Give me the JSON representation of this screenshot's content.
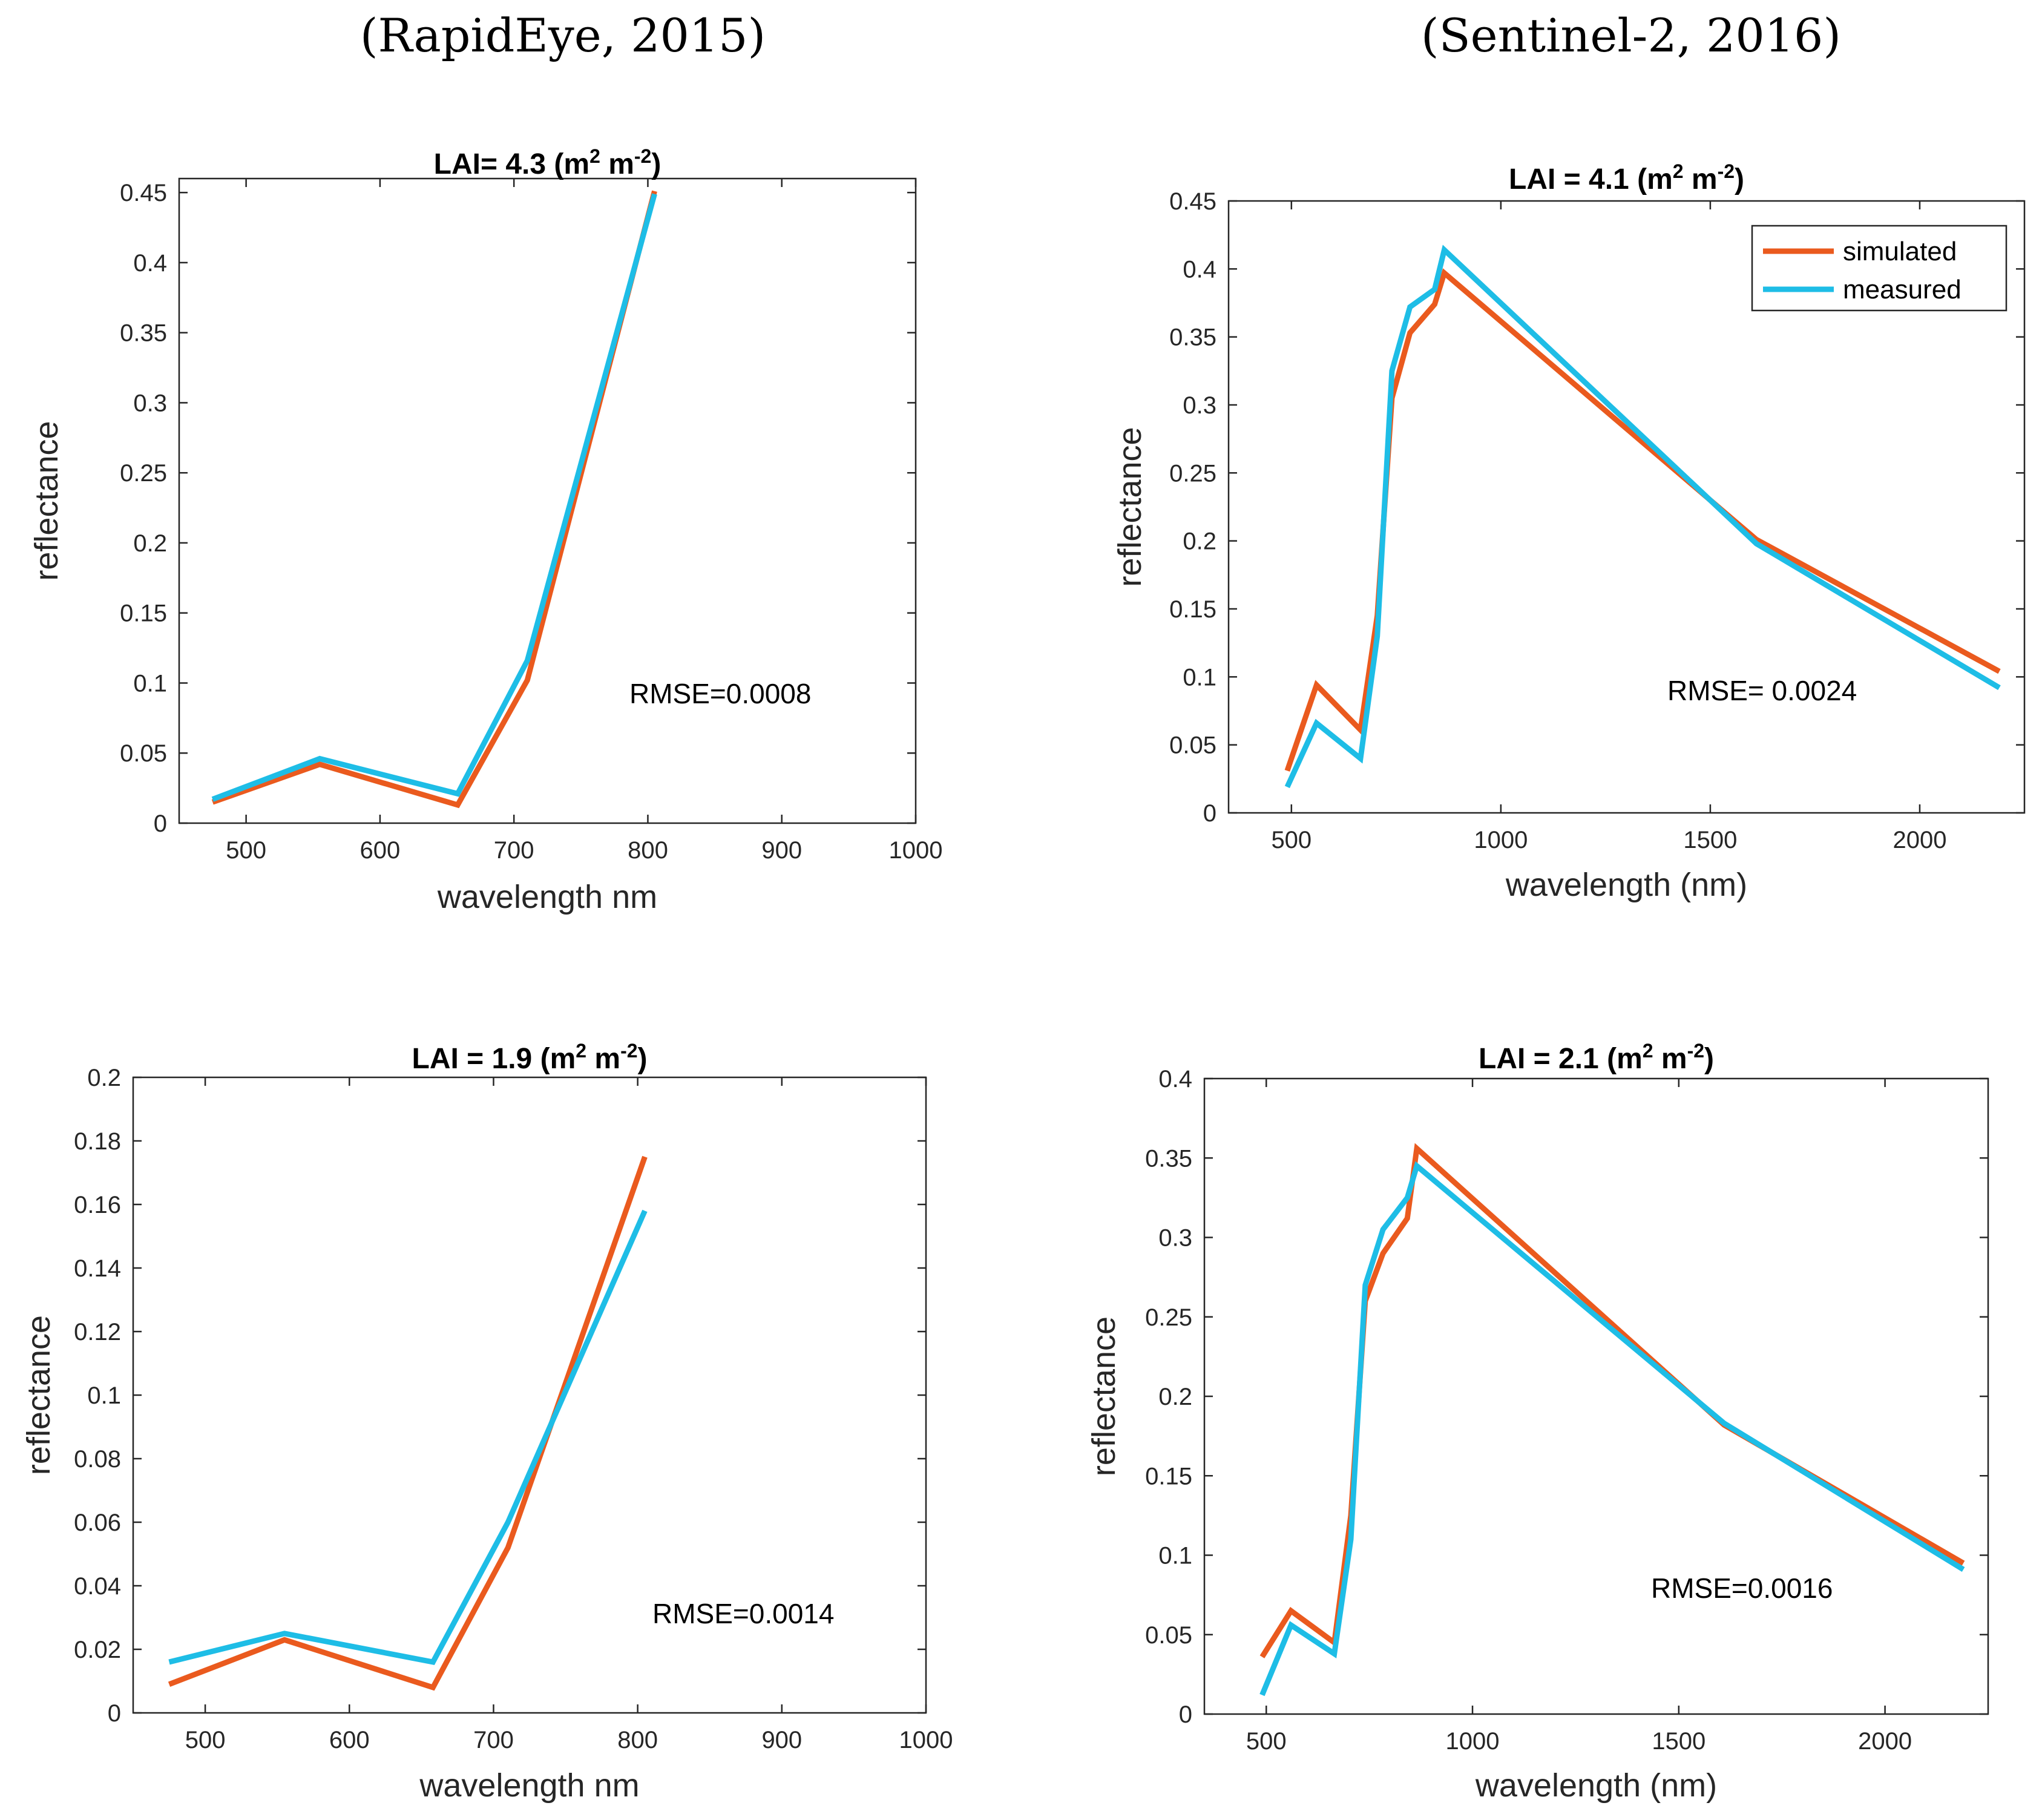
{
  "captions": {
    "left": "(RapidEye, 2015)",
    "right": "(Sentinel-2, 2016)"
  },
  "colors": {
    "simulated": "#EA5A1E",
    "measured": "#1EBDE6"
  },
  "chart_data": [
    {
      "type": "line",
      "title": "LAI= 4.3 (m² m⁻²)",
      "title_parts": [
        "LAI= 4.3 (m",
        "2",
        " m",
        "-2",
        ")"
      ],
      "xlabel": "wavelength  nm",
      "ylabel": "reflectance",
      "xlim": [
        450,
        1000
      ],
      "ylim": [
        0,
        0.46
      ],
      "xticks": [
        500,
        600,
        700,
        800,
        900,
        1000
      ],
      "xtick_labels": [
        "500",
        "600",
        "700",
        "800",
        "900",
        "1000"
      ],
      "yticks": [
        0,
        0.05,
        0.1,
        0.15,
        0.2,
        0.25,
        0.3,
        0.35,
        0.4,
        0.45
      ],
      "ytick_labels": [
        "0",
        "0.05",
        "0.1",
        "0.15",
        "0.2",
        "0.25",
        "0.3",
        "0.35",
        "0.4",
        "0.45"
      ],
      "annotation": "RMSE=0.0008",
      "series": [
        {
          "name": "simulated",
          "x": [
            475,
            555,
            658,
            710,
            805
          ],
          "y": [
            0.015,
            0.042,
            0.013,
            0.102,
            0.451
          ]
        },
        {
          "name": "measured",
          "x": [
            475,
            555,
            658,
            710,
            805
          ],
          "y": [
            0.017,
            0.046,
            0.021,
            0.116,
            0.449
          ]
        }
      ]
    },
    {
      "type": "line",
      "title": "LAI = 4.1 (m² m⁻²)",
      "title_parts": [
        "LAI = 4.1 (m",
        "2",
        " m",
        "-2",
        ")"
      ],
      "xlabel": "wavelength (nm)",
      "ylabel": "reflectance",
      "xlim": [
        350,
        2250
      ],
      "ylim": [
        0,
        0.45
      ],
      "xticks": [
        500,
        1000,
        1500,
        2000
      ],
      "xtick_labels": [
        "500",
        "1000",
        "1500",
        "2000"
      ],
      "yticks": [
        0,
        0.05,
        0.1,
        0.15,
        0.2,
        0.25,
        0.3,
        0.35,
        0.4,
        0.45
      ],
      "ytick_labels": [
        "0",
        "0.05",
        "0.1",
        "0.15",
        "0.2",
        "0.25",
        "0.3",
        "0.35",
        "0.4",
        "0.45"
      ],
      "annotation": "RMSE= 0.0024",
      "legend": [
        "simulated",
        "measured"
      ],
      "series": [
        {
          "name": "simulated",
          "x": [
            490,
            560,
            665,
            705,
            740,
            783,
            842,
            865,
            1610,
            2190
          ],
          "y": [
            0.031,
            0.094,
            0.061,
            0.145,
            0.305,
            0.353,
            0.374,
            0.397,
            0.201,
            0.104
          ]
        },
        {
          "name": "measured",
          "x": [
            490,
            560,
            665,
            705,
            740,
            783,
            842,
            865,
            1610,
            2190
          ],
          "y": [
            0.019,
            0.066,
            0.04,
            0.13,
            0.325,
            0.372,
            0.385,
            0.414,
            0.198,
            0.092
          ]
        }
      ]
    },
    {
      "type": "line",
      "title": "LAI = 1.9 (m² m⁻²)",
      "title_parts": [
        "LAI = 1.9 (m",
        "2",
        " m",
        "-2",
        ")"
      ],
      "xlabel": "wavelength  nm",
      "ylabel": "reflectance",
      "xlim": [
        450,
        1000
      ],
      "ylim": [
        0,
        0.2
      ],
      "xticks": [
        500,
        600,
        700,
        800,
        900,
        1000
      ],
      "xtick_labels": [
        "500",
        "600",
        "700",
        "800",
        "900",
        "1000"
      ],
      "yticks": [
        0,
        0.02,
        0.04,
        0.06,
        0.08,
        0.1,
        0.12,
        0.14,
        0.16,
        0.18,
        0.2
      ],
      "ytick_labels": [
        "0",
        "0.02",
        "0.04",
        "0.06",
        "0.08",
        "0.1",
        "0.12",
        "0.14",
        "0.16",
        "0.18",
        "0.2"
      ],
      "annotation": "RMSE=0.0014",
      "series": [
        {
          "name": "simulated",
          "x": [
            475,
            555,
            658,
            710,
            805
          ],
          "y": [
            0.009,
            0.023,
            0.008,
            0.052,
            0.175
          ]
        },
        {
          "name": "measured",
          "x": [
            475,
            555,
            658,
            710,
            805
          ],
          "y": [
            0.016,
            0.025,
            0.016,
            0.06,
            0.158
          ]
        }
      ]
    },
    {
      "type": "line",
      "title": "LAI = 2.1 (m² m⁻²)",
      "title_parts": [
        "LAI = 2.1 (m",
        "2",
        " m",
        "-2",
        ")"
      ],
      "xlabel": "wavelength (nm)",
      "ylabel": "reflectance",
      "xlim": [
        350,
        2250
      ],
      "ylim": [
        0,
        0.4
      ],
      "xticks": [
        500,
        1000,
        1500,
        2000
      ],
      "xtick_labels": [
        "500",
        "1000",
        "1500",
        "2000"
      ],
      "yticks": [
        0,
        0.05,
        0.1,
        0.15,
        0.2,
        0.25,
        0.3,
        0.35,
        0.4
      ],
      "ytick_labels": [
        "0",
        "0.05",
        "0.1",
        "0.15",
        "0.2",
        "0.25",
        "0.3",
        "0.35",
        "0.4"
      ],
      "annotation": "RMSE=0.0016",
      "series": [
        {
          "name": "simulated",
          "x": [
            490,
            560,
            665,
            705,
            740,
            783,
            842,
            865,
            1610,
            2190
          ],
          "y": [
            0.036,
            0.065,
            0.045,
            0.125,
            0.26,
            0.29,
            0.312,
            0.356,
            0.182,
            0.095
          ]
        },
        {
          "name": "measured",
          "x": [
            490,
            560,
            665,
            705,
            740,
            783,
            842,
            865,
            1610,
            2190
          ],
          "y": [
            0.012,
            0.056,
            0.038,
            0.11,
            0.27,
            0.305,
            0.325,
            0.345,
            0.183,
            0.091
          ]
        }
      ]
    }
  ]
}
